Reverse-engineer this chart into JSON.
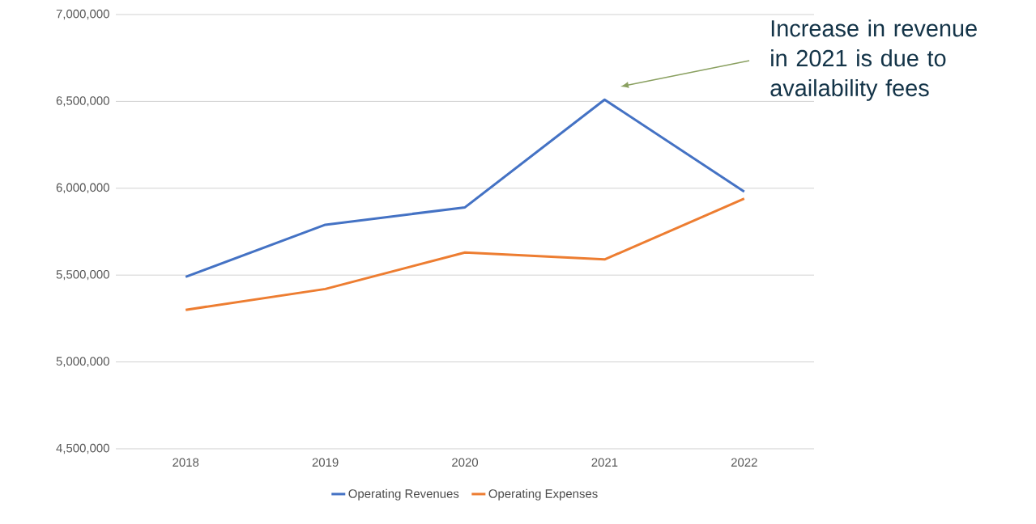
{
  "chart_data": {
    "type": "line",
    "categories": [
      "2018",
      "2019",
      "2020",
      "2021",
      "2022"
    ],
    "series": [
      {
        "name": "Operating Revenues",
        "color": "#4472c4",
        "values": [
          5490000,
          5790000,
          5890000,
          6510000,
          5980000
        ]
      },
      {
        "name": "Operating Expenses",
        "color": "#ed7d31",
        "values": [
          5300000,
          5420000,
          5630000,
          5590000,
          5940000
        ]
      }
    ],
    "ylim": [
      4500000,
      7000000
    ],
    "yticks": [
      {
        "value": 4500000,
        "label": "4,500,000"
      },
      {
        "value": 5000000,
        "label": "5,000,000"
      },
      {
        "value": 5500000,
        "label": "5,500,000"
      },
      {
        "value": 6000000,
        "label": "6,000,000"
      },
      {
        "value": 6500000,
        "label": "6,500,000"
      },
      {
        "value": 7000000,
        "label": "7,000,000"
      }
    ],
    "grid": "y",
    "legend": "bottom",
    "marker": "none",
    "line_style": "solid",
    "annotations": [
      "Increase in revenue in 2021 is due to availability fees"
    ]
  }
}
